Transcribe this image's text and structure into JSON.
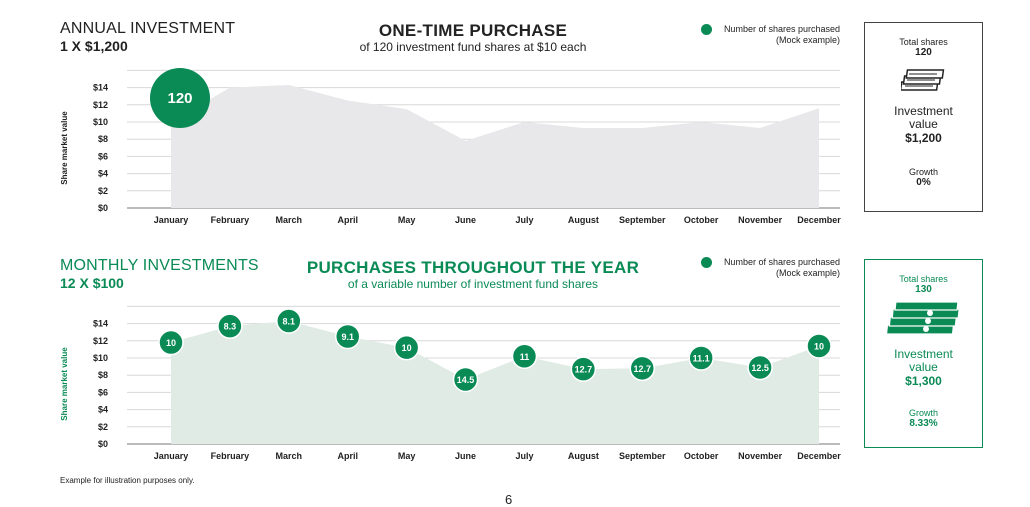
{
  "colors": {
    "accent": "#0a8a55",
    "area1": "#e8e8ea",
    "area2": "#e0ebe5",
    "grid": "#d8d8d8"
  },
  "section1": {
    "title": "ANNUAL INVESTMENT",
    "subtitle": "1 X $1,200",
    "center_title": "ONE-TIME PURCHASE",
    "center_subtitle": "of 120 investment fund shares at $10 each",
    "legend_line1": "Number of shares purchased",
    "legend_line2": "(Mock example)",
    "box": {
      "total_label": "Total shares",
      "total_value": "120",
      "icon": "money-stack-icon",
      "inv_line1": "Investment",
      "inv_line2": "value",
      "inv_value": "$1,200",
      "growth_label": "Growth",
      "growth_value": "0%"
    }
  },
  "section2": {
    "title": "MONTHLY INVESTMENTS",
    "subtitle": "12 X $100",
    "center_title": "PURCHASES THROUGHOUT THE YEAR",
    "center_subtitle": "of a variable number of investment fund shares",
    "legend_line1": "Number of shares purchased",
    "legend_line2": "(Mock example)",
    "box": {
      "total_label": "Total shares",
      "total_value": "130",
      "icon": "money-stack-icon",
      "inv_line1": "Investment",
      "inv_line2": "value",
      "inv_value": "$1,300",
      "growth_label": "Growth",
      "growth_value": "8.33%"
    }
  },
  "chart_data": [
    {
      "type": "area",
      "ylabel": "Share market value",
      "categories": [
        "January",
        "February",
        "March",
        "April",
        "May",
        "June",
        "July",
        "August",
        "September",
        "October",
        "November",
        "December"
      ],
      "yticks": [
        "$0",
        "$2",
        "$4",
        "$6",
        "$8",
        "$10",
        "$12",
        "$14"
      ],
      "ylim": [
        0,
        16
      ],
      "values": [
        10,
        14,
        14.3,
        12.5,
        11.5,
        7.8,
        10,
        9.3,
        9.3,
        10,
        9.3,
        11.6
      ],
      "markers": [
        {
          "index": 0,
          "label": "120"
        }
      ]
    },
    {
      "type": "area",
      "ylabel": "Share market value",
      "categories": [
        "January",
        "February",
        "March",
        "April",
        "May",
        "June",
        "July",
        "August",
        "September",
        "October",
        "November",
        "December"
      ],
      "yticks": [
        "$0",
        "$2",
        "$4",
        "$6",
        "$8",
        "$10",
        "$12",
        "$14"
      ],
      "ylim": [
        0,
        16
      ],
      "values": [
        11.8,
        13.7,
        14.3,
        12.5,
        11.2,
        7.5,
        10.2,
        8.7,
        8.8,
        10,
        8.9,
        11.4
      ],
      "markers": [
        {
          "index": 0,
          "label": "10"
        },
        {
          "index": 1,
          "label": "8.3"
        },
        {
          "index": 2,
          "label": "8.1"
        },
        {
          "index": 3,
          "label": "9.1"
        },
        {
          "index": 4,
          "label": "10"
        },
        {
          "index": 5,
          "label": "14.5"
        },
        {
          "index": 6,
          "label": "11"
        },
        {
          "index": 7,
          "label": "12.7"
        },
        {
          "index": 8,
          "label": "12.7"
        },
        {
          "index": 9,
          "label": "11.1"
        },
        {
          "index": 10,
          "label": "12.5"
        },
        {
          "index": 11,
          "label": "10"
        }
      ]
    }
  ],
  "footnote": "Example for illustration purposes only.",
  "page_number": "6"
}
